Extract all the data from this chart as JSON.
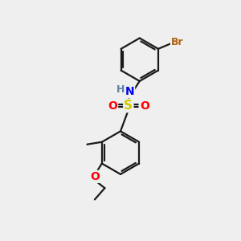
{
  "background_color": "#efefef",
  "bond_color": "#1a1a1a",
  "bond_width": 1.6,
  "atom_colors": {
    "Br": "#b06010",
    "N": "#0000ee",
    "H": "#6080a0",
    "S": "#cccc00",
    "O": "#ff0000",
    "C": "#1a1a1a"
  },
  "font_size": 9,
  "figsize": [
    3.0,
    3.0
  ],
  "dpi": 100
}
